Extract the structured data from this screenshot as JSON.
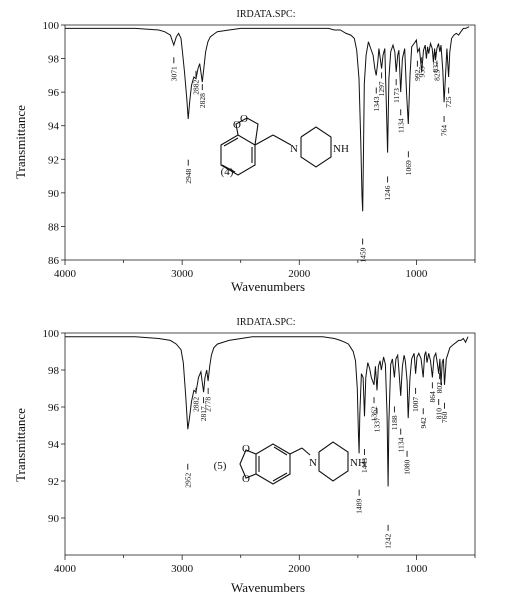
{
  "chart_data": [
    {
      "type": "line",
      "title": "IRDATA.SPC:",
      "xlabel": "Wavenumbers",
      "ylabel": "Transmittance",
      "xlim": [
        4000,
        500
      ],
      "ylim": [
        86,
        100
      ],
      "xticks": [
        4000,
        3000,
        2000,
        1000
      ],
      "yticks": [
        86,
        88,
        90,
        92,
        94,
        96,
        98,
        100
      ],
      "compound_label": "(4)",
      "structure_atom_label": "NH",
      "grid": false,
      "series": [
        {
          "x": [
            4000,
            3800,
            3600,
            3400,
            3200,
            3150,
            3100,
            3071,
            3050,
            3030,
            3010,
            3000,
            2980,
            2960,
            2948,
            2935,
            2920,
            2900,
            2882,
            2865,
            2850,
            2840,
            2828,
            2815,
            2800,
            2780,
            2760,
            2740,
            2720,
            2700,
            2600,
            2500,
            2400,
            2300,
            2200,
            2100,
            2000,
            1950,
            1900,
            1850,
            1800,
            1750,
            1700,
            1650,
            1600,
            1560,
            1530,
            1510,
            1490,
            1475,
            1465,
            1459,
            1452,
            1445,
            1430,
            1410,
            1390,
            1370,
            1355,
            1343,
            1330,
            1320,
            1297,
            1285,
            1270,
            1260,
            1246,
            1235,
            1220,
            1200,
            1185,
            1173,
            1160,
            1150,
            1134,
            1120,
            1100,
            1085,
            1069,
            1055,
            1040,
            1020,
            1000,
            990,
            975,
            955,
            940,
            925,
            915,
            905,
            895,
            880,
            865,
            855,
            845,
            837,
            825,
            812,
            800,
            790,
            775,
            764,
            750,
            740,
            725,
            715,
            700,
            680,
            660,
            640,
            620,
            600,
            580,
            550
          ],
          "y": [
            99.8,
            99.8,
            99.8,
            99.8,
            99.7,
            99.6,
            99.4,
            98.8,
            99.3,
            99.5,
            99.2,
            98.6,
            97.2,
            95.6,
            94.4,
            95.5,
            96.4,
            96.9,
            96.8,
            97.4,
            97.7,
            97.2,
            96.6,
            97.4,
            98.4,
            99.0,
            99.3,
            99.4,
            99.5,
            99.6,
            99.7,
            99.8,
            99.8,
            99.8,
            99.8,
            99.8,
            99.8,
            99.8,
            99.8,
            99.8,
            99.8,
            99.8,
            99.7,
            99.7,
            99.5,
            99.4,
            99.2,
            98.5,
            96.8,
            93.0,
            89.8,
            88.9,
            92.5,
            96.5,
            98.2,
            99.0,
            98.6,
            98.2,
            97.4,
            97.0,
            97.8,
            98.6,
            97.4,
            98.2,
            98.6,
            96.0,
            92.4,
            96.8,
            98.4,
            98.8,
            98.4,
            97.2,
            98.2,
            98.5,
            96.0,
            98.0,
            98.6,
            96.0,
            94.1,
            97.0,
            98.7,
            98.9,
            99.1,
            98.4,
            98.6,
            97.2,
            98.5,
            98.8,
            98.0,
            98.7,
            98.3,
            98.9,
            98.6,
            97.8,
            98.6,
            97.9,
            98.6,
            98.9,
            98.4,
            98.8,
            97.3,
            95.4,
            97.2,
            98.6,
            96.9,
            98.4,
            99.2,
            99.4,
            99.5,
            99.4,
            99.6,
            99.8,
            99.8,
            99.9
          ]
        }
      ],
      "peak_labels": [
        "3071",
        "2948",
        "2882",
        "2828",
        "1459",
        "1343",
        "1297",
        "1246",
        "1173",
        "1134",
        "1069",
        "992",
        "955",
        "837",
        "825",
        "764",
        "725"
      ]
    },
    {
      "type": "line",
      "title": "IRDATA.SPC:",
      "xlabel": "Wavenumbers",
      "ylabel": "Transmittance",
      "xlim": [
        4000,
        500
      ],
      "ylim": [
        88,
        100
      ],
      "xticks": [
        4000,
        3000,
        2000,
        1000
      ],
      "yticks": [
        90,
        92,
        94,
        96,
        98,
        100
      ],
      "compound_label": "(5)",
      "structure_atom_label": "NH",
      "grid": false,
      "series": [
        {
          "x": [
            4000,
            3800,
            3600,
            3400,
            3200,
            3100,
            3050,
            3010,
            2990,
            2970,
            2952,
            2940,
            2920,
            2900,
            2882,
            2860,
            2840,
            2830,
            2817,
            2805,
            2790,
            2778,
            2765,
            2750,
            2730,
            2700,
            2600,
            2400,
            2200,
            2000,
            1800,
            1700,
            1650,
            1610,
            1580,
            1560,
            1540,
            1520,
            1505,
            1495,
            1489,
            1483,
            1470,
            1455,
            1443,
            1432,
            1415,
            1400,
            1385,
            1362,
            1350,
            1337,
            1325,
            1310,
            1300,
            1280,
            1265,
            1250,
            1242,
            1235,
            1220,
            1205,
            1188,
            1175,
            1160,
            1150,
            1134,
            1120,
            1105,
            1095,
            1080,
            1070,
            1055,
            1040,
            1020,
            1007,
            995,
            980,
            960,
            942,
            930,
            920,
            910,
            895,
            880,
            864,
            850,
            835,
            820,
            810,
            800,
            790,
            780,
            770,
            760,
            745,
            730,
            715,
            700,
            680,
            660,
            640,
            620,
            600,
            580,
            560
          ],
          "y": [
            99.8,
            99.8,
            99.8,
            99.8,
            99.7,
            99.6,
            99.4,
            99.1,
            98.4,
            96.6,
            94.8,
            95.3,
            96.3,
            96.9,
            96.8,
            97.6,
            97.9,
            97.4,
            96.8,
            97.6,
            98.0,
            97.4,
            98.2,
            98.8,
            99.2,
            99.4,
            99.6,
            99.8,
            99.8,
            99.8,
            99.8,
            99.7,
            99.6,
            99.5,
            99.4,
            99.2,
            99.0,
            98.5,
            97.0,
            94.6,
            93.5,
            95.6,
            97.8,
            97.6,
            95.5,
            97.6,
            98.4,
            98.1,
            97.6,
            97.2,
            98.2,
            96.9,
            98.2,
            98.5,
            98.0,
            98.7,
            98.3,
            95.5,
            91.7,
            95.2,
            98.3,
            98.6,
            97.6,
            98.6,
            98.8,
            98.0,
            96.6,
            98.2,
            98.8,
            98.5,
            97.4,
            95.4,
            97.6,
            98.6,
            98.9,
            97.8,
            98.7,
            98.9,
            98.6,
            97.6,
            98.8,
            99.0,
            98.4,
            98.9,
            98.5,
            97.6,
            98.7,
            98.9,
            98.3,
            97.8,
            98.6,
            97.2,
            98.4,
            98.6,
            97.2,
            98.6,
            98.9,
            99.2,
            99.3,
            99.4,
            99.5,
            99.6,
            99.6,
            99.7,
            99.5,
            99.8
          ]
        }
      ],
      "peak_labels": [
        "2952",
        "2882",
        "2817",
        "2778",
        "1489",
        "1443",
        "1362",
        "1337",
        "802",
        "1242",
        "1188",
        "1134",
        "1080",
        "1007",
        "942",
        "864",
        "810",
        "760"
      ]
    }
  ]
}
